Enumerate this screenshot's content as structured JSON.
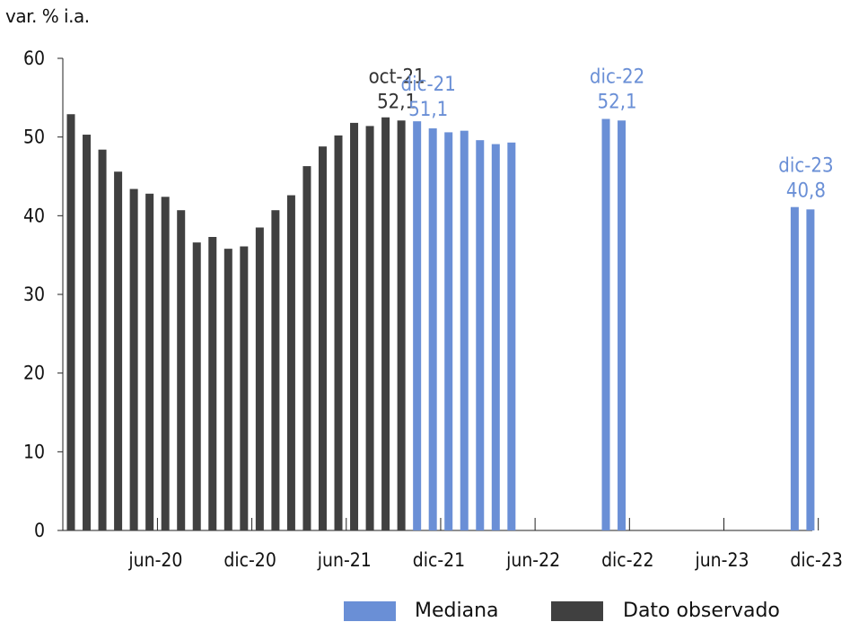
{
  "chart_data": {
    "type": "bar",
    "ylabel": "var. % i.a.",
    "ylim": [
      0,
      60
    ],
    "yticks": [
      0,
      10,
      20,
      30,
      40,
      50,
      60
    ],
    "xtick_labels": [
      "jun-20",
      "dic-20",
      "jun-21",
      "dic-21",
      "jun-22",
      "dic-22",
      "jun-23",
      "dic-23"
    ],
    "grid": false,
    "legend_position": "bottom",
    "series": [
      {
        "name": "Dato observado",
        "color": "#404040",
        "points": [
          {
            "date": "2020-01",
            "value": 52.9
          },
          {
            "date": "2020-02",
            "value": 50.3
          },
          {
            "date": "2020-03",
            "value": 48.4
          },
          {
            "date": "2020-04",
            "value": 45.6
          },
          {
            "date": "2020-05",
            "value": 43.4
          },
          {
            "date": "2020-06",
            "value": 42.8
          },
          {
            "date": "2020-07",
            "value": 42.4
          },
          {
            "date": "2020-08",
            "value": 40.7
          },
          {
            "date": "2020-09",
            "value": 36.6
          },
          {
            "date": "2020-10",
            "value": 37.3
          },
          {
            "date": "2020-11",
            "value": 35.8
          },
          {
            "date": "2020-12",
            "value": 36.1
          },
          {
            "date": "2021-01",
            "value": 38.5
          },
          {
            "date": "2021-02",
            "value": 40.7
          },
          {
            "date": "2021-03",
            "value": 42.6
          },
          {
            "date": "2021-04",
            "value": 46.3
          },
          {
            "date": "2021-05",
            "value": 48.8
          },
          {
            "date": "2021-06",
            "value": 50.2
          },
          {
            "date": "2021-07",
            "value": 51.8
          },
          {
            "date": "2021-08",
            "value": 51.4
          },
          {
            "date": "2021-09",
            "value": 52.5
          },
          {
            "date": "2021-10",
            "value": 52.1
          }
        ]
      },
      {
        "name": "Mediana",
        "color": "#6a8fd6",
        "points": [
          {
            "date": "2021-11",
            "value": 52.0
          },
          {
            "date": "2021-12",
            "value": 51.1
          },
          {
            "date": "2022-01",
            "value": 50.6
          },
          {
            "date": "2022-02",
            "value": 50.8
          },
          {
            "date": "2022-03",
            "value": 49.6
          },
          {
            "date": "2022-04",
            "value": 49.1
          },
          {
            "date": "2022-05",
            "value": 49.3
          },
          {
            "date": "2022-11",
            "value": 52.3
          },
          {
            "date": "2022-12",
            "value": 52.1
          },
          {
            "date": "2023-11",
            "value": 41.1
          },
          {
            "date": "2023-12",
            "value": 40.8
          }
        ]
      }
    ],
    "annotations": [
      {
        "date": "2021-10",
        "lines": [
          "oct-21",
          "52,1"
        ],
        "color": "#333333"
      },
      {
        "date": "2021-12",
        "lines": [
          "dic-21",
          "51,1"
        ],
        "color": "#6a8fd6"
      },
      {
        "date": "2022-12",
        "lines": [
          "dic-22",
          "52,1"
        ],
        "color": "#6a8fd6"
      },
      {
        "date": "2023-12",
        "lines": [
          "dic-23",
          "40,8"
        ],
        "color": "#6a8fd6"
      }
    ]
  },
  "legend": {
    "mediana": {
      "label": "Mediana",
      "color": "#6a8fd6"
    },
    "observado": {
      "label": "Dato observado",
      "color": "#404040"
    }
  }
}
